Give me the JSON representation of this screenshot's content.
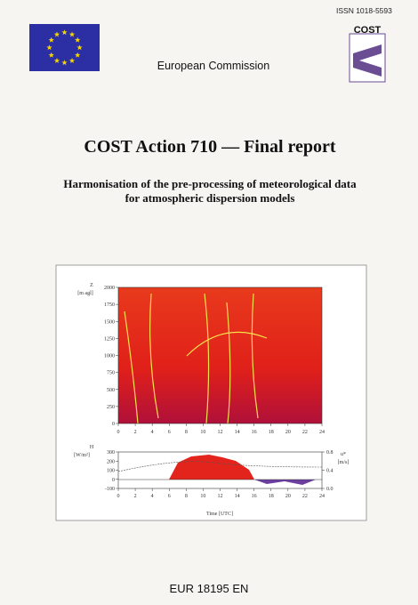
{
  "header": {
    "issn": "ISSN 1018-5593",
    "logo_text": "COST",
    "publisher": "European Commission"
  },
  "title": "COST Action 710 — Final report",
  "subtitle": [
    "Harmonisation of the pre-processing of meteorological data",
    "for atmospheric dispersion models"
  ],
  "figure": {
    "upper_plot": {
      "y_label": [
        "Z",
        "[m agl]"
      ],
      "xlim": [
        0,
        24
      ],
      "ylim": [
        0,
        2000
      ],
      "xticks": [
        0,
        2,
        4,
        6,
        8,
        10,
        12,
        14,
        16,
        18,
        20,
        22,
        24
      ],
      "yticks": [
        0,
        250,
        500,
        750,
        1000,
        1250,
        1500,
        1750,
        2000
      ]
    },
    "lower_plot": {
      "y_label": [
        "H",
        "[W/m²]"
      ],
      "y2_label": [
        "u*",
        "[m/s]"
      ],
      "x_label": "Time [UTC]",
      "xlim": [
        0,
        24
      ],
      "ylim": [
        -100,
        300
      ],
      "y2lim": [
        0,
        0.8
      ],
      "xticks": [
        0,
        2,
        4,
        6,
        8,
        10,
        12,
        14,
        16,
        18,
        20,
        22,
        24
      ],
      "yticks": [
        300,
        200,
        100,
        0,
        -100
      ],
      "y2ticks": [
        0.8,
        0.4,
        {
          "value": 0,
          "label": "0.0"
        }
      ]
    }
  },
  "footer": "EUR 18195 EN"
}
